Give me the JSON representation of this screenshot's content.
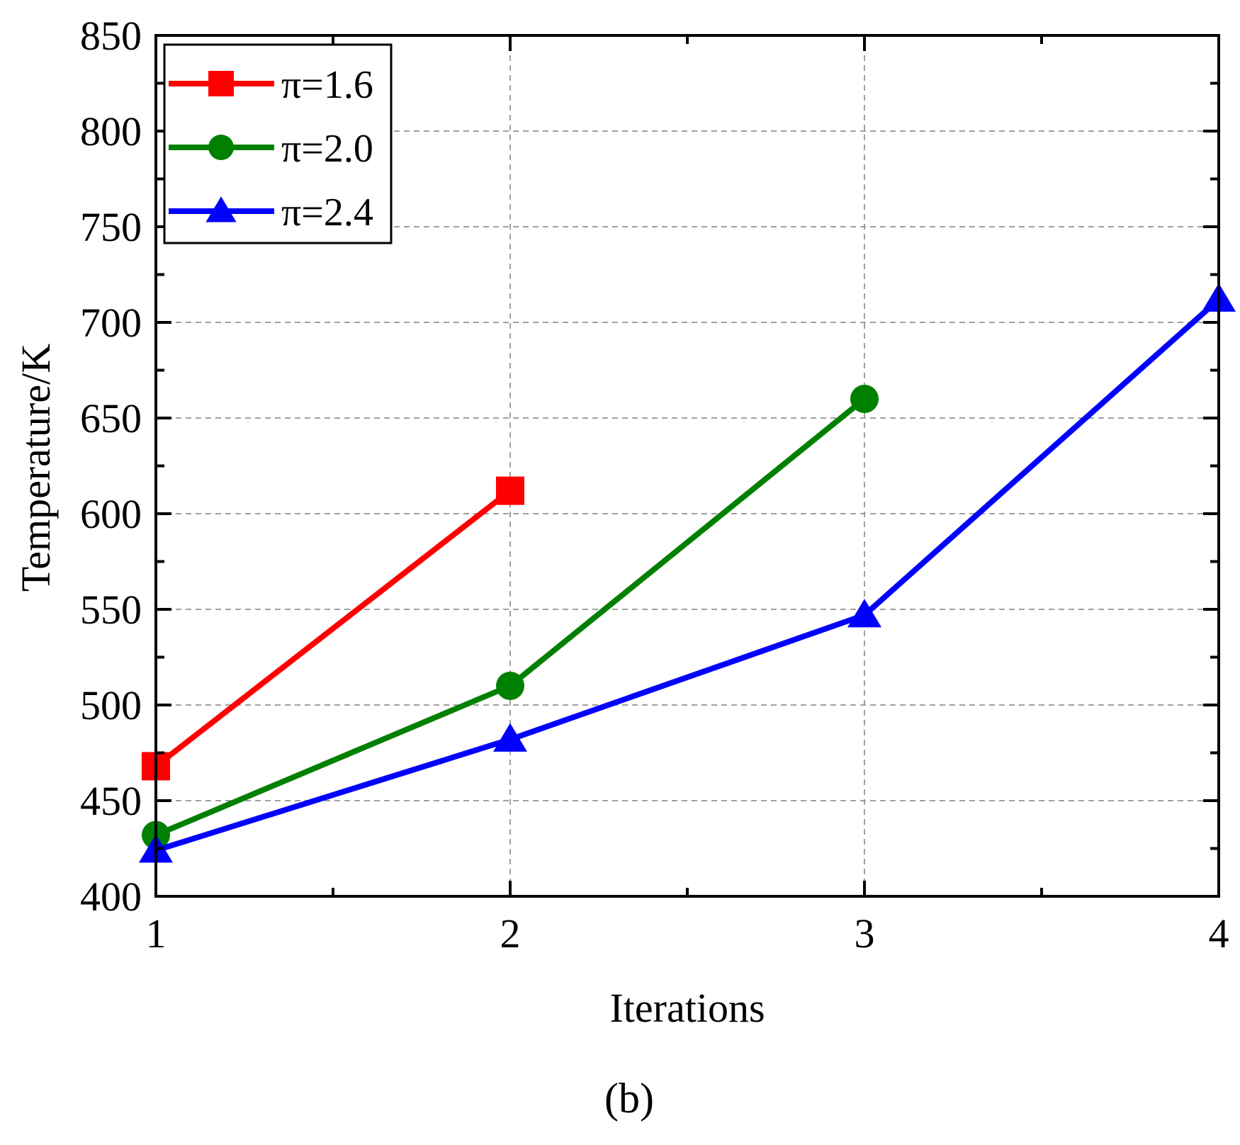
{
  "chart_data": {
    "type": "line",
    "xlabel": "Iterations",
    "ylabel": "Temperature/K",
    "panel_label": "(b)",
    "xlim": [
      1,
      4
    ],
    "ylim": [
      400,
      850
    ],
    "x_ticks": [
      1,
      2,
      3,
      4
    ],
    "y_ticks": [
      400,
      450,
      500,
      550,
      600,
      650,
      700,
      750,
      800,
      850
    ],
    "grid": true,
    "legend_position": "top-left",
    "series": [
      {
        "name": "π=1.6",
        "color": "#ff0000",
        "marker": "square",
        "x": [
          1,
          2
        ],
        "y": [
          468,
          612
        ]
      },
      {
        "name": "π=2.0",
        "color": "#008000",
        "marker": "circle",
        "x": [
          1,
          2,
          3
        ],
        "y": [
          432,
          510,
          660
        ]
      },
      {
        "name": "π=2.4",
        "color": "#0000ff",
        "marker": "triangle",
        "x": [
          1,
          2,
          3,
          4
        ],
        "y": [
          424,
          482,
          547,
          712
        ]
      }
    ]
  }
}
